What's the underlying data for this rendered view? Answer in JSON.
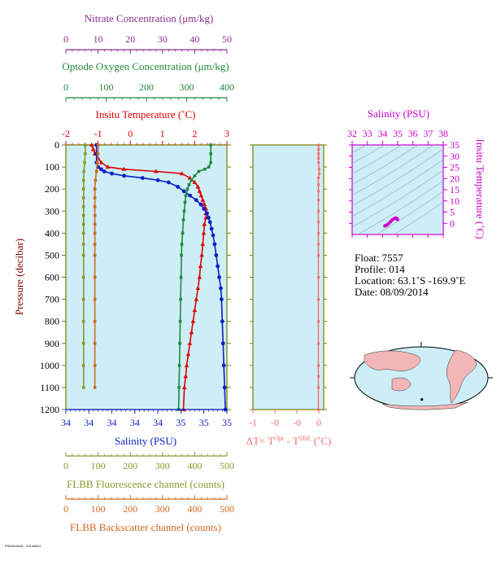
{
  "colors": {
    "nitrate": "#8b2f8b",
    "oxygen": "#1f8a3a",
    "temperature": "#dd0000",
    "salinity": "#0a1fc8",
    "fluorescence": "#8a9a2a",
    "backscatter": "#d2691e",
    "delta_t": "#f07070",
    "ts_magenta": "#cc00cc",
    "panel_bg": "#cdeef7",
    "land": "#f2b6b6"
  },
  "chart_data": [
    {
      "type": "line",
      "panel": "profile",
      "ylabel": "Pressure (decibar)",
      "ylim": [
        1200,
        0
      ],
      "yticks": [
        "0",
        "100",
        "200",
        "300",
        "400",
        "500",
        "600",
        "700",
        "800",
        "900",
        "1000",
        "1100",
        "1200"
      ],
      "axes": {
        "nitrate": {
          "label": "Nitrate Concentration (μm/kg)",
          "range": [
            0,
            50
          ],
          "ticks": [
            "0",
            "10",
            "20",
            "30",
            "40",
            "50"
          ]
        },
        "oxygen": {
          "label": "Optode Oxygen Concentration (μm/kg)",
          "range": [
            0,
            400
          ],
          "ticks": [
            "0",
            "100",
            "200",
            "300",
            "400"
          ]
        },
        "temperature": {
          "label": "Insitu Temperature (˚C)",
          "range": [
            -2,
            3
          ],
          "ticks": [
            "-2",
            "-1",
            "0",
            "1",
            "2",
            "3"
          ]
        },
        "salinity": {
          "label": "Salinity (PSU)",
          "range": [
            33.95,
            35.0
          ],
          "ticks": [
            "34",
            "34",
            "34",
            "34",
            "34",
            "35",
            "35",
            "35"
          ]
        },
        "fluorescence": {
          "label": "FLBB Fluorescence channel (counts)",
          "range": [
            0,
            500
          ],
          "ticks": [
            "0",
            "100",
            "200",
            "300",
            "400",
            "500"
          ]
        },
        "backscatter": {
          "label": "FLBB Backscatter channel (counts)",
          "range": [
            0,
            500
          ],
          "ticks": [
            "0",
            "100",
            "200",
            "300",
            "400",
            "500"
          ]
        }
      },
      "series": [
        {
          "key": "temperature",
          "axis": "temperature",
          "x": [
            -1.2,
            -1.15,
            -1.1,
            -1.0,
            -0.9,
            -0.7,
            -0.2,
            0.8,
            1.6,
            1.85,
            2.0,
            2.1,
            2.15,
            2.2,
            2.25,
            2.3,
            2.35,
            2.35,
            2.35,
            2.3,
            2.28,
            2.25,
            2.22,
            2.18,
            2.15,
            2.1,
            2.05,
            2.0,
            1.95,
            1.9,
            1.85,
            1.8,
            1.75,
            1.72,
            1.68,
            1.65
          ],
          "y": [
            0,
            20,
            40,
            60,
            80,
            100,
            110,
            120,
            130,
            150,
            170,
            190,
            210,
            230,
            250,
            270,
            290,
            310,
            330,
            360,
            400,
            450,
            500,
            550,
            600,
            650,
            700,
            750,
            800,
            850,
            900,
            950,
            1000,
            1050,
            1100,
            1200
          ]
        },
        {
          "key": "salinity",
          "axis": "salinity",
          "x": [
            34.15,
            34.15,
            34.15,
            34.16,
            34.18,
            34.2,
            34.25,
            34.33,
            34.45,
            34.55,
            34.62,
            34.68,
            34.72,
            34.76,
            34.8,
            34.83,
            34.85,
            34.87,
            34.88,
            34.89,
            34.9,
            34.91,
            34.92,
            34.93,
            34.94,
            34.95,
            34.96,
            34.965,
            34.97,
            34.975,
            34.98,
            34.985,
            34.99
          ],
          "y": [
            0,
            40,
            80,
            100,
            110,
            120,
            130,
            140,
            150,
            160,
            170,
            190,
            210,
            230,
            250,
            270,
            290,
            310,
            330,
            350,
            380,
            410,
            450,
            500,
            550,
            600,
            650,
            700,
            800,
            900,
            1000,
            1100,
            1200
          ]
        },
        {
          "key": "oxygen",
          "axis": "oxygen",
          "x": [
            360,
            360,
            360,
            355,
            345,
            330,
            320,
            312,
            306,
            302,
            298,
            296,
            294,
            292,
            290,
            288,
            287,
            286,
            285,
            284,
            283,
            282,
            281,
            280
          ],
          "y": [
            0,
            40,
            80,
            100,
            110,
            120,
            140,
            160,
            180,
            200,
            230,
            260,
            300,
            340,
            400,
            450,
            500,
            600,
            700,
            800,
            900,
            1000,
            1100,
            1200
          ]
        },
        {
          "key": "fluorescence",
          "axis": "fluorescence",
          "x": [
            60,
            60,
            58,
            56,
            55,
            55,
            55,
            55,
            55,
            55,
            55,
            55,
            55,
            55,
            55,
            55,
            55,
            55,
            55
          ],
          "y": [
            0,
            40,
            80,
            120,
            160,
            200,
            240,
            280,
            320,
            360,
            400,
            450,
            500,
            600,
            700,
            800,
            900,
            1000,
            1100
          ]
        },
        {
          "key": "backscatter",
          "axis": "backscatter",
          "x": [
            100,
            100,
            98,
            95,
            92,
            90,
            90,
            90,
            90,
            90,
            90,
            90,
            90,
            90,
            90,
            90,
            90,
            90,
            90
          ],
          "y": [
            0,
            40,
            80,
            120,
            160,
            200,
            240,
            280,
            320,
            360,
            400,
            450,
            500,
            600,
            700,
            800,
            900,
            1000,
            1100
          ]
        }
      ]
    },
    {
      "type": "line",
      "panel": "delta_t",
      "xlabel": "ΔT= T^Opt - T^SBE (˚C)",
      "xlabel_parts": {
        "prefix": "ΔT= T",
        "sup1": "Opt",
        "mid": " - T",
        "sup2": "SBE",
        "suffix": " (˚C)"
      },
      "xlim": [
        -1,
        0.1
      ],
      "xticks": [
        "-1",
        "-0",
        "-0",
        "0"
      ],
      "ylim": [
        1200,
        0
      ],
      "series": [
        {
          "key": "delta_t",
          "x": [
            -0.005,
            -0.005,
            -0.005,
            -0.006,
            -0.006,
            0.005,
            0.01,
            -0.008,
            -0.008,
            -0.008,
            -0.008,
            -0.008,
            -0.008,
            -0.008,
            -0.008,
            -0.008,
            -0.008,
            -0.008,
            -0.008,
            -0.008,
            -0.008,
            -0.008,
            -0.008,
            -0.008
          ],
          "y": [
            0,
            20,
            40,
            60,
            80,
            110,
            130,
            150,
            180,
            210,
            250,
            300,
            350,
            400,
            450,
            500,
            600,
            700,
            800,
            900,
            1000,
            1050,
            1100,
            1200
          ]
        }
      ]
    },
    {
      "type": "scatter",
      "panel": "ts_diagram",
      "xlabel": "Salinity (PSU)",
      "ylabel": "Insitu Temperature (˚C)",
      "xlim": [
        32,
        38
      ],
      "ylim": [
        -5,
        35
      ],
      "xticks": [
        "32",
        "33",
        "34",
        "35",
        "36",
        "37",
        "38"
      ],
      "yticks": [
        "0",
        "5",
        "10",
        "15",
        "20",
        "25",
        "30",
        "35"
      ],
      "points": {
        "x": [
          34.15,
          34.17,
          34.2,
          34.25,
          34.33,
          34.45,
          34.55,
          34.65,
          34.75,
          34.82,
          34.86,
          34.88,
          34.9,
          34.92,
          34.94,
          34.96,
          34.98,
          34.99
        ],
        "y": [
          -1.2,
          -1.1,
          -1.0,
          -0.9,
          -0.5,
          0.2,
          0.9,
          1.6,
          2.0,
          2.2,
          2.3,
          2.35,
          2.3,
          2.2,
          2.1,
          2.0,
          1.8,
          1.65
        ]
      }
    }
  ],
  "info": {
    "float": "Float:  7557",
    "profile": "Profile:  014",
    "location": "Location:  63.1˚S  -169.9˚E",
    "date": "Date:  08/09/2014"
  },
  "map": {
    "lat": -63.1,
    "lon": -169.9
  },
  "footer": "PSDM20000 - 20140814"
}
